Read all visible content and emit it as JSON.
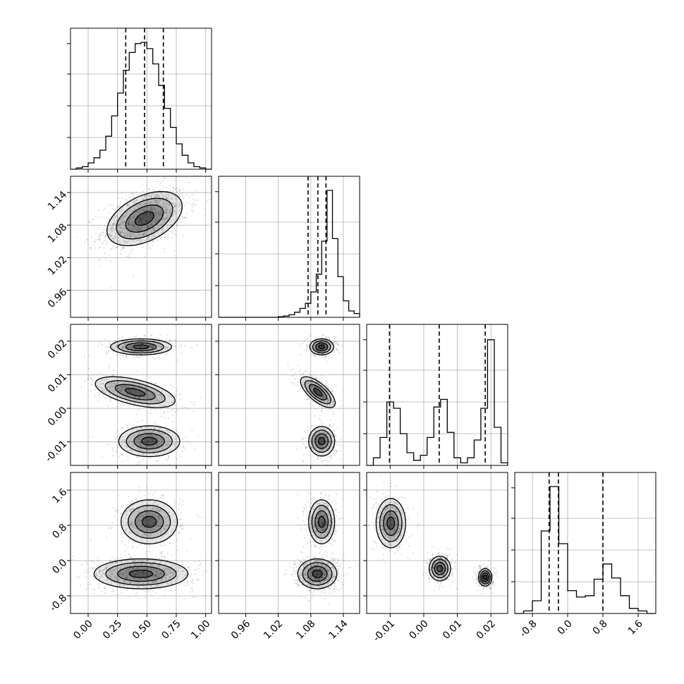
{
  "chart_data": {
    "type": "corner",
    "grid": true,
    "parameters": [
      {
        "range": [
          -0.15,
          1.05
        ],
        "ticks": [
          0.0,
          0.25,
          0.5,
          0.75,
          1.0
        ],
        "tick_labels": [
          "0.00",
          "0.25",
          "0.50",
          "0.75",
          "1.00"
        ],
        "quantiles": [
          0.32,
          0.48,
          0.64
        ],
        "histogram": {
          "bins": [
            -0.15,
            -0.1,
            -0.05,
            0.0,
            0.05,
            0.1,
            0.15,
            0.2,
            0.25,
            0.3,
            0.35,
            0.4,
            0.45,
            0.5,
            0.55,
            0.6,
            0.65,
            0.7,
            0.75,
            0.8,
            0.85,
            0.9,
            0.95,
            1.0,
            1.05
          ],
          "counts": [
            0.0,
            0.01,
            0.02,
            0.05,
            0.09,
            0.15,
            0.26,
            0.42,
            0.6,
            0.78,
            0.92,
            0.99,
            1.0,
            0.95,
            0.83,
            0.66,
            0.48,
            0.33,
            0.2,
            0.11,
            0.05,
            0.02,
            0.01,
            0.0
          ]
        }
      },
      {
        "range": [
          0.91,
          1.17
        ],
        "ticks": [
          0.96,
          1.02,
          1.08,
          1.14
        ],
        "tick_labels": [
          "0.96",
          "1.02",
          "1.08",
          "1.14"
        ],
        "quantiles": [
          1.075,
          1.093,
          1.108
        ],
        "histogram": {
          "bins": [
            0.91,
            0.92,
            0.93,
            0.94,
            0.95,
            0.96,
            0.97,
            0.98,
            0.99,
            1.0,
            1.01,
            1.02,
            1.03,
            1.04,
            1.05,
            1.06,
            1.07,
            1.08,
            1.09,
            1.1,
            1.11,
            1.12,
            1.13,
            1.14,
            1.15,
            1.16,
            1.17
          ],
          "counts": [
            0.0,
            0.0,
            0.0,
            0.0,
            0.0,
            0.0,
            0.0,
            0.0,
            0.0,
            0.0,
            0.0,
            0.005,
            0.01,
            0.02,
            0.04,
            0.07,
            0.11,
            0.2,
            0.34,
            0.6,
            1.0,
            0.62,
            0.32,
            0.13,
            0.05,
            0.03
          ]
        }
      },
      {
        "range": [
          -0.017,
          0.025
        ],
        "ticks": [
          -0.01,
          0.0,
          0.01,
          0.02
        ],
        "tick_labels": [
          "-0.01",
          "0.00",
          "0.01",
          "0.02"
        ],
        "quantiles": [
          -0.0102,
          0.0046,
          0.0183
        ],
        "histogram": {
          "bins": [
            -0.017,
            -0.015,
            -0.013,
            -0.011,
            -0.009,
            -0.007,
            -0.005,
            -0.003,
            -0.001,
            0.001,
            0.003,
            0.005,
            0.007,
            0.009,
            0.011,
            0.013,
            0.015,
            0.017,
            0.019,
            0.021,
            0.023,
            0.025
          ],
          "counts": [
            0.0,
            0.06,
            0.22,
            0.5,
            0.45,
            0.25,
            0.1,
            0.04,
            0.08,
            0.22,
            0.46,
            0.52,
            0.26,
            0.06,
            0.02,
            0.06,
            0.2,
            0.45,
            0.99,
            0.3,
            0.02
          ]
        }
      },
      {
        "range": [
          -1.2,
          2.0
        ],
        "ticks": [
          -0.8,
          0.0,
          0.8,
          1.6
        ],
        "tick_labels": [
          "-0.8",
          "0.0",
          "0.8",
          "1.6"
        ],
        "quantiles": [
          -0.42,
          -0.21,
          0.8
        ],
        "histogram": {
          "bins": [
            -1.2,
            -1.0,
            -0.8,
            -0.6,
            -0.4,
            -0.2,
            0.0,
            0.2,
            0.4,
            0.6,
            0.8,
            1.0,
            1.2,
            1.4,
            1.6,
            1.8,
            2.0
          ],
          "counts": [
            0.0,
            0.02,
            0.1,
            0.65,
            1.0,
            0.55,
            0.18,
            0.13,
            0.14,
            0.27,
            0.39,
            0.28,
            0.14,
            0.04,
            0.02,
            0.0
          ]
        }
      }
    ],
    "pairs": [
      {
        "row": 1,
        "col": 0,
        "clusters": [
          {
            "mx": 0.48,
            "my": 1.092,
            "sx": 0.16,
            "sy": 0.025,
            "rho": 0.45,
            "w": 1.0
          }
        ]
      },
      {
        "row": 2,
        "col": 0,
        "clusters": [
          {
            "mx": 0.45,
            "my": 0.0183,
            "sx": 0.13,
            "sy": 0.0012,
            "rho": 0.0,
            "w": 0.33
          },
          {
            "mx": 0.4,
            "my": 0.0048,
            "sx": 0.17,
            "sy": 0.0023,
            "rho": -0.55,
            "w": 0.34
          },
          {
            "mx": 0.52,
            "my": -0.0098,
            "sx": 0.13,
            "sy": 0.0023,
            "rho": 0.0,
            "w": 0.33
          }
        ]
      },
      {
        "row": 2,
        "col": 1,
        "clusters": [
          {
            "mx": 1.1,
            "my": 0.0183,
            "sx": 0.011,
            "sy": 0.0012,
            "rho": 0.0,
            "w": 0.33
          },
          {
            "mx": 1.093,
            "my": 0.0048,
            "sx": 0.016,
            "sy": 0.0023,
            "rho": -0.7,
            "w": 0.34
          },
          {
            "mx": 1.1,
            "my": -0.0098,
            "sx": 0.012,
            "sy": 0.0022,
            "rho": 0.0,
            "w": 0.33
          }
        ]
      },
      {
        "row": 3,
        "col": 0,
        "clusters": [
          {
            "mx": 0.52,
            "my": 0.88,
            "sx": 0.12,
            "sy": 0.25,
            "rho": 0.0,
            "w": 0.33
          },
          {
            "mx": 0.45,
            "my": -0.3,
            "sx": 0.2,
            "sy": 0.17,
            "rho": 0.0,
            "w": 0.67
          }
        ]
      },
      {
        "row": 3,
        "col": 1,
        "clusters": [
          {
            "mx": 1.1,
            "my": 0.88,
            "sx": 0.012,
            "sy": 0.25,
            "rho": 0.0,
            "w": 0.33
          },
          {
            "mx": 1.092,
            "my": -0.3,
            "sx": 0.018,
            "sy": 0.17,
            "rho": 0.0,
            "w": 0.67
          }
        ]
      },
      {
        "row": 3,
        "col": 2,
        "clusters": [
          {
            "mx": -0.0098,
            "my": 0.85,
            "sx": 0.0022,
            "sy": 0.28,
            "rho": 0.0,
            "w": 0.33
          },
          {
            "mx": 0.0048,
            "my": -0.18,
            "sx": 0.0016,
            "sy": 0.14,
            "rho": 0.0,
            "w": 0.34
          },
          {
            "mx": 0.0183,
            "my": -0.38,
            "sx": 0.001,
            "sy": 0.1,
            "rho": 0.0,
            "w": 0.33
          }
        ]
      }
    ]
  }
}
